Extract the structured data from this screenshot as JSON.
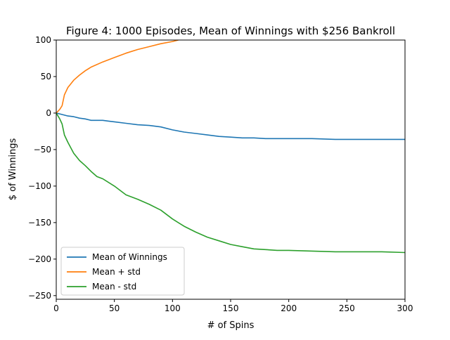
{
  "chart_data": {
    "type": "line",
    "title": "Figure 4: 1000 Episodes, Mean of Winnings with $256 Bankroll",
    "xlabel": "# of Spins",
    "ylabel": "$ of Winnings",
    "xlim": [
      0,
      300
    ],
    "ylim": [
      -255,
      100
    ],
    "xticks": [
      0,
      50,
      100,
      150,
      200,
      250,
      300
    ],
    "yticks": [
      -250,
      -200,
      -150,
      -100,
      -50,
      0,
      50,
      100
    ],
    "grid": false,
    "legend_position": "lower-left",
    "series": [
      {
        "name": "Mean of Winnings",
        "color": "#1f77b4",
        "x": [
          0,
          5,
          10,
          15,
          20,
          25,
          30,
          35,
          40,
          45,
          50,
          60,
          70,
          80,
          90,
          100,
          110,
          120,
          130,
          140,
          150,
          160,
          170,
          180,
          190,
          200,
          220,
          240,
          260,
          280,
          300
        ],
        "y": [
          0,
          -2,
          -4,
          -5,
          -7,
          -8,
          -10,
          -10,
          -10,
          -11,
          -12,
          -14,
          -16,
          -17,
          -19,
          -23,
          -26,
          -28,
          -30,
          -32,
          -33,
          -34,
          -34,
          -35,
          -35,
          -35,
          -35,
          -36,
          -36,
          -36,
          -36
        ]
      },
      {
        "name": "Mean + std",
        "color": "#ff7f0e",
        "x": [
          0,
          3,
          5,
          7,
          10,
          15,
          20,
          25,
          30,
          40,
          50,
          60,
          70,
          80,
          90,
          100,
          105
        ],
        "y": [
          0,
          5,
          10,
          25,
          35,
          45,
          52,
          58,
          63,
          70,
          76,
          82,
          87,
          91,
          95,
          98,
          100
        ]
      },
      {
        "name": "Mean - std",
        "color": "#2ca02c",
        "x": [
          0,
          3,
          5,
          7,
          10,
          15,
          20,
          25,
          30,
          35,
          40,
          50,
          60,
          70,
          80,
          90,
          100,
          110,
          120,
          130,
          140,
          150,
          160,
          170,
          180,
          190,
          200,
          220,
          240,
          260,
          280,
          300
        ],
        "y": [
          0,
          -8,
          -15,
          -30,
          -40,
          -55,
          -65,
          -72,
          -80,
          -87,
          -90,
          -100,
          -112,
          -118,
          -125,
          -133,
          -145,
          -155,
          -163,
          -170,
          -175,
          -180,
          -183,
          -186,
          -187,
          -188,
          -188,
          -189,
          -190,
          -190,
          -190,
          -191
        ]
      }
    ]
  }
}
